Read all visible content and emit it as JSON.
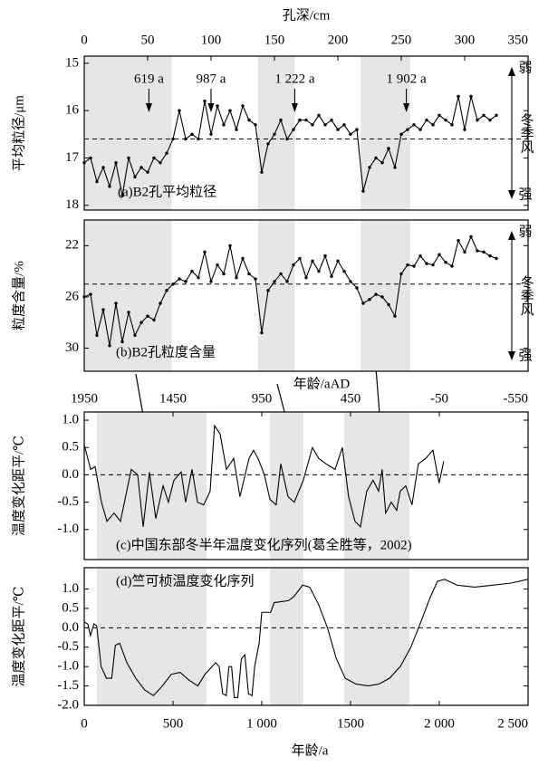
{
  "chart_data": [
    {
      "type": "line",
      "markers": true,
      "xlabel": "孔深/cm",
      "xlim": [
        0,
        350
      ],
      "xticks": [
        0,
        50,
        100,
        150,
        200,
        250,
        300,
        350
      ],
      "xaxis_position": "top",
      "ylabel": "平均粒径/μm",
      "ylim": [
        18.1,
        14.85
      ],
      "yticks": [
        15,
        16,
        17,
        18
      ],
      "reference_line": 16.6,
      "title": "(a)B2孔平均粒径",
      "monsoon_labels": [
        "弱",
        "冬季风",
        "强"
      ],
      "shaded_ranges": [
        [
          0,
          69
        ],
        [
          137,
          166
        ],
        [
          218,
          257
        ]
      ],
      "annotations": [
        {
          "text": "619 a",
          "x": 51
        },
        {
          "text": "987 a",
          "x": 100
        },
        {
          "text": "1 222 a",
          "x": 166
        },
        {
          "text": "1 902 a",
          "x": 254
        }
      ],
      "x": [
        0,
        5,
        10,
        15,
        20,
        25,
        30,
        35,
        40,
        45,
        50,
        55,
        60,
        65,
        70,
        75,
        80,
        85,
        90,
        95,
        100,
        105,
        110,
        115,
        120,
        125,
        130,
        135,
        140,
        145,
        150,
        155,
        160,
        165,
        170,
        175,
        180,
        185,
        190,
        195,
        200,
        205,
        210,
        215,
        220,
        225,
        230,
        235,
        240,
        245,
        250,
        255,
        260,
        265,
        270,
        275,
        280,
        285,
        290,
        295,
        300,
        305,
        310,
        315,
        320,
        325
      ],
      "series": [
        {
          "color": "#000000",
          "values": [
            17.1,
            17.0,
            17.5,
            17.2,
            17.6,
            17.1,
            17.8,
            17.0,
            17.4,
            17.2,
            17.3,
            17.0,
            17.1,
            16.9,
            16.6,
            16.0,
            16.6,
            16.5,
            16.6,
            15.8,
            16.5,
            15.9,
            16.3,
            16.0,
            16.4,
            15.9,
            16.2,
            16.3,
            17.3,
            16.7,
            16.5,
            16.2,
            16.6,
            16.4,
            16.2,
            16.2,
            16.3,
            16.1,
            16.3,
            16.2,
            16.4,
            16.3,
            16.5,
            16.4,
            17.7,
            17.2,
            17.0,
            17.1,
            16.8,
            17.2,
            16.5,
            16.4,
            16.3,
            16.4,
            16.2,
            16.3,
            16.1,
            16.2,
            16.3,
            15.7,
            16.4,
            15.7,
            16.2,
            16.1,
            16.2,
            16.1
          ]
        }
      ]
    },
    {
      "type": "line",
      "markers": true,
      "xlim": [
        0,
        350
      ],
      "ylabel": "粒度含量/%",
      "ylim": [
        31.8,
        20.0
      ],
      "yticks": [
        22,
        26,
        30
      ],
      "reference_line": 25,
      "title": "(b)B2孔粒度含量",
      "monsoon_labels": [
        "弱",
        "冬季风",
        "强"
      ],
      "shaded_ranges": [
        [
          0,
          69
        ],
        [
          137,
          166
        ],
        [
          218,
          257
        ]
      ],
      "x": [
        0,
        5,
        10,
        15,
        20,
        25,
        30,
        35,
        40,
        45,
        50,
        55,
        60,
        65,
        70,
        75,
        80,
        85,
        90,
        95,
        100,
        105,
        110,
        115,
        120,
        125,
        130,
        135,
        140,
        145,
        150,
        155,
        160,
        165,
        170,
        175,
        180,
        185,
        190,
        195,
        200,
        205,
        210,
        215,
        220,
        225,
        230,
        235,
        240,
        245,
        250,
        255,
        260,
        265,
        270,
        275,
        280,
        285,
        290,
        295,
        300,
        305,
        310,
        315,
        320,
        325
      ],
      "series": [
        {
          "color": "#000000",
          "values": [
            26.0,
            25.8,
            29.0,
            27.0,
            29.8,
            26.5,
            29.5,
            27.2,
            29.0,
            28.0,
            27.5,
            27.8,
            26.5,
            25.5,
            25.0,
            24.6,
            24.8,
            24.0,
            24.5,
            22.5,
            24.8,
            23.5,
            24.2,
            22.0,
            24.5,
            23.0,
            24.2,
            24.6,
            28.8,
            25.5,
            24.8,
            24.2,
            24.8,
            23.5,
            23.0,
            24.5,
            23.2,
            24.0,
            22.8,
            24.4,
            23.2,
            24.0,
            24.8,
            25.3,
            26.5,
            26.2,
            25.8,
            26.0,
            26.6,
            27.5,
            24.2,
            23.5,
            23.6,
            22.8,
            23.4,
            23.5,
            22.7,
            23.3,
            23.6,
            21.6,
            22.5,
            21.3,
            22.4,
            22.5,
            22.8,
            23.0
          ]
        }
      ]
    },
    {
      "type": "line",
      "markers": false,
      "xlabel": "年龄/aAD",
      "xlim": [
        1950,
        -550
      ],
      "xticks": [
        1950,
        1450,
        950,
        450,
        -50,
        -550
      ],
      "xaxis_position": "top",
      "ylabel": "温度变化距平/℃",
      "ylim": [
        -1.55,
        1.15
      ],
      "yticks": [
        {
          "value": 1,
          "label": "1.0"
        },
        0.5,
        {
          "value": 0,
          "label": "0.0"
        },
        -0.5,
        {
          "value": -1,
          "label": "-1.0"
        }
      ],
      "reference_line": 0,
      "title": "(c)中国东部冬半年温度变化序列(葛全胜等，2002)",
      "shaded_ranges": [
        [
          1879,
          1261
        ],
        [
          904,
          716
        ],
        [
          486,
          118
        ]
      ],
      "x": [
        1950,
        1914,
        1889,
        1853,
        1822,
        1782,
        1746,
        1685,
        1649,
        1618,
        1583,
        1547,
        1506,
        1476,
        1445,
        1404,
        1379,
        1343,
        1312,
        1277,
        1241,
        1216,
        1185,
        1149,
        1108,
        1073,
        1022,
        996,
        971,
        935,
        904,
        869,
        843,
        802,
        767,
        716,
        665,
        629,
        588,
        537,
        496,
        461,
        425,
        394,
        359,
        323,
        292,
        272,
        252,
        221,
        190,
        170,
        139,
        104,
        68,
        27,
        -14,
        -49,
        -75
      ],
      "series": [
        {
          "color": "#000000",
          "values": [
            0.55,
            0.1,
            0.15,
            -0.5,
            -0.85,
            -0.7,
            -0.85,
            0.1,
            0.0,
            -0.95,
            0.05,
            -0.8,
            -0.2,
            -0.5,
            -0.1,
            0.05,
            -0.5,
            0.1,
            -0.5,
            -0.55,
            -0.3,
            0.9,
            0.75,
            0.1,
            0.3,
            -0.4,
            0.3,
            0.45,
            0.3,
            0.0,
            -0.45,
            -0.55,
            0.2,
            -0.4,
            -0.5,
            -0.1,
            0.5,
            0.3,
            0.2,
            0.1,
            0.5,
            -0.4,
            -0.85,
            -0.95,
            -0.3,
            -0.1,
            -0.3,
            0.1,
            -0.7,
            -0.5,
            -0.65,
            -0.3,
            -0.2,
            -0.55,
            0.2,
            0.3,
            0.45,
            -0.15,
            0.25
          ]
        }
      ]
    },
    {
      "type": "line",
      "markers": false,
      "xlabel": "年龄/a",
      "xlim": [
        0,
        2500
      ],
      "xticks": [
        0,
        500,
        {
          "value": 1000,
          "label": "1 000"
        },
        1500,
        {
          "value": 2000,
          "label": "2 000"
        },
        {
          "value": 2500,
          "label": "2 500"
        }
      ],
      "xaxis_position": "bottom",
      "ylabel": "温度变化距平/℃",
      "ylim": [
        -2.0,
        1.55
      ],
      "yticks": [
        {
          "value": 1,
          "label": "1.0"
        },
        0.5,
        {
          "value": 0,
          "label": "0.0"
        },
        -0.5,
        {
          "value": -1,
          "label": "-1.0"
        },
        -1.5,
        {
          "value": -2,
          "label": "-2.0"
        }
      ],
      "reference_line": 0,
      "title": "(d)竺可桢温度变化序列",
      "shaded_ranges": [
        [
          71,
          689
        ],
        [
          1046,
          1235
        ],
        [
          1464,
          1832
        ]
      ],
      "x": [
        0,
        20,
        35,
        55,
        70,
        95,
        125,
        155,
        175,
        200,
        240,
        290,
        340,
        390,
        440,
        490,
        540,
        590,
        640,
        680,
        740,
        760,
        780,
        800,
        815,
        830,
        845,
        865,
        885,
        905,
        925,
        945,
        960,
        985,
        1000,
        1050,
        1070,
        1150,
        1180,
        1230,
        1270,
        1320,
        1370,
        1420,
        1470,
        1530,
        1600,
        1660,
        1720,
        1780,
        1840,
        1900,
        1950,
        1990,
        2030,
        2100,
        2200,
        2300,
        2400,
        2500
      ],
      "series": [
        {
          "color": "#000000",
          "values": [
            0.15,
            0.1,
            -0.2,
            0.1,
            0.05,
            -1.0,
            -1.3,
            -1.3,
            -0.45,
            -0.4,
            -0.9,
            -1.3,
            -1.6,
            -1.75,
            -1.5,
            -1.2,
            -1.15,
            -1.35,
            -1.5,
            -1.2,
            -0.9,
            -1.0,
            -1.7,
            -1.75,
            -1.0,
            -1.0,
            -1.8,
            -1.8,
            -0.8,
            -0.7,
            -1.7,
            -1.75,
            -1.0,
            -0.4,
            0.4,
            0.4,
            0.65,
            0.7,
            0.8,
            1.1,
            1.05,
            0.6,
            0.0,
            -0.8,
            -1.3,
            -1.45,
            -1.5,
            -1.45,
            -1.3,
            -1.0,
            -0.5,
            0.2,
            0.8,
            1.2,
            1.25,
            1.1,
            1.05,
            1.1,
            1.15,
            1.25
          ]
        }
      ]
    }
  ]
}
